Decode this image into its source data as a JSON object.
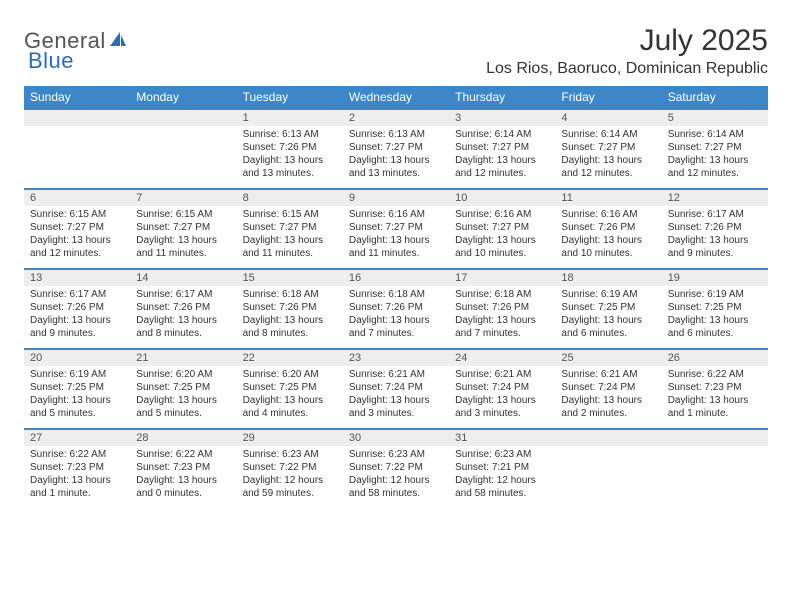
{
  "logo": {
    "part1": "General",
    "part2": "Blue"
  },
  "title": "July 2025",
  "location": "Los Rios, Baoruco, Dominican Republic",
  "colors": {
    "header_bg": "#3d87c9",
    "header_text": "#ffffff",
    "daynum_bg": "#eeeeee",
    "border": "#3d87c9",
    "text": "#333333",
    "logo_gray": "#555555",
    "logo_blue": "#2a6db3"
  },
  "weekdays": [
    "Sunday",
    "Monday",
    "Tuesday",
    "Wednesday",
    "Thursday",
    "Friday",
    "Saturday"
  ],
  "weeks": [
    [
      {
        "blank": true
      },
      {
        "blank": true
      },
      {
        "day": "1",
        "sunrise": "Sunrise: 6:13 AM",
        "sunset": "Sunset: 7:26 PM",
        "daylight": "Daylight: 13 hours and 13 minutes."
      },
      {
        "day": "2",
        "sunrise": "Sunrise: 6:13 AM",
        "sunset": "Sunset: 7:27 PM",
        "daylight": "Daylight: 13 hours and 13 minutes."
      },
      {
        "day": "3",
        "sunrise": "Sunrise: 6:14 AM",
        "sunset": "Sunset: 7:27 PM",
        "daylight": "Daylight: 13 hours and 12 minutes."
      },
      {
        "day": "4",
        "sunrise": "Sunrise: 6:14 AM",
        "sunset": "Sunset: 7:27 PM",
        "daylight": "Daylight: 13 hours and 12 minutes."
      },
      {
        "day": "5",
        "sunrise": "Sunrise: 6:14 AM",
        "sunset": "Sunset: 7:27 PM",
        "daylight": "Daylight: 13 hours and 12 minutes."
      }
    ],
    [
      {
        "day": "6",
        "sunrise": "Sunrise: 6:15 AM",
        "sunset": "Sunset: 7:27 PM",
        "daylight": "Daylight: 13 hours and 12 minutes."
      },
      {
        "day": "7",
        "sunrise": "Sunrise: 6:15 AM",
        "sunset": "Sunset: 7:27 PM",
        "daylight": "Daylight: 13 hours and 11 minutes."
      },
      {
        "day": "8",
        "sunrise": "Sunrise: 6:15 AM",
        "sunset": "Sunset: 7:27 PM",
        "daylight": "Daylight: 13 hours and 11 minutes."
      },
      {
        "day": "9",
        "sunrise": "Sunrise: 6:16 AM",
        "sunset": "Sunset: 7:27 PM",
        "daylight": "Daylight: 13 hours and 11 minutes."
      },
      {
        "day": "10",
        "sunrise": "Sunrise: 6:16 AM",
        "sunset": "Sunset: 7:27 PM",
        "daylight": "Daylight: 13 hours and 10 minutes."
      },
      {
        "day": "11",
        "sunrise": "Sunrise: 6:16 AM",
        "sunset": "Sunset: 7:26 PM",
        "daylight": "Daylight: 13 hours and 10 minutes."
      },
      {
        "day": "12",
        "sunrise": "Sunrise: 6:17 AM",
        "sunset": "Sunset: 7:26 PM",
        "daylight": "Daylight: 13 hours and 9 minutes."
      }
    ],
    [
      {
        "day": "13",
        "sunrise": "Sunrise: 6:17 AM",
        "sunset": "Sunset: 7:26 PM",
        "daylight": "Daylight: 13 hours and 9 minutes."
      },
      {
        "day": "14",
        "sunrise": "Sunrise: 6:17 AM",
        "sunset": "Sunset: 7:26 PM",
        "daylight": "Daylight: 13 hours and 8 minutes."
      },
      {
        "day": "15",
        "sunrise": "Sunrise: 6:18 AM",
        "sunset": "Sunset: 7:26 PM",
        "daylight": "Daylight: 13 hours and 8 minutes."
      },
      {
        "day": "16",
        "sunrise": "Sunrise: 6:18 AM",
        "sunset": "Sunset: 7:26 PM",
        "daylight": "Daylight: 13 hours and 7 minutes."
      },
      {
        "day": "17",
        "sunrise": "Sunrise: 6:18 AM",
        "sunset": "Sunset: 7:26 PM",
        "daylight": "Daylight: 13 hours and 7 minutes."
      },
      {
        "day": "18",
        "sunrise": "Sunrise: 6:19 AM",
        "sunset": "Sunset: 7:25 PM",
        "daylight": "Daylight: 13 hours and 6 minutes."
      },
      {
        "day": "19",
        "sunrise": "Sunrise: 6:19 AM",
        "sunset": "Sunset: 7:25 PM",
        "daylight": "Daylight: 13 hours and 6 minutes."
      }
    ],
    [
      {
        "day": "20",
        "sunrise": "Sunrise: 6:19 AM",
        "sunset": "Sunset: 7:25 PM",
        "daylight": "Daylight: 13 hours and 5 minutes."
      },
      {
        "day": "21",
        "sunrise": "Sunrise: 6:20 AM",
        "sunset": "Sunset: 7:25 PM",
        "daylight": "Daylight: 13 hours and 5 minutes."
      },
      {
        "day": "22",
        "sunrise": "Sunrise: 6:20 AM",
        "sunset": "Sunset: 7:25 PM",
        "daylight": "Daylight: 13 hours and 4 minutes."
      },
      {
        "day": "23",
        "sunrise": "Sunrise: 6:21 AM",
        "sunset": "Sunset: 7:24 PM",
        "daylight": "Daylight: 13 hours and 3 minutes."
      },
      {
        "day": "24",
        "sunrise": "Sunrise: 6:21 AM",
        "sunset": "Sunset: 7:24 PM",
        "daylight": "Daylight: 13 hours and 3 minutes."
      },
      {
        "day": "25",
        "sunrise": "Sunrise: 6:21 AM",
        "sunset": "Sunset: 7:24 PM",
        "daylight": "Daylight: 13 hours and 2 minutes."
      },
      {
        "day": "26",
        "sunrise": "Sunrise: 6:22 AM",
        "sunset": "Sunset: 7:23 PM",
        "daylight": "Daylight: 13 hours and 1 minute."
      }
    ],
    [
      {
        "day": "27",
        "sunrise": "Sunrise: 6:22 AM",
        "sunset": "Sunset: 7:23 PM",
        "daylight": "Daylight: 13 hours and 1 minute."
      },
      {
        "day": "28",
        "sunrise": "Sunrise: 6:22 AM",
        "sunset": "Sunset: 7:23 PM",
        "daylight": "Daylight: 13 hours and 0 minutes."
      },
      {
        "day": "29",
        "sunrise": "Sunrise: 6:23 AM",
        "sunset": "Sunset: 7:22 PM",
        "daylight": "Daylight: 12 hours and 59 minutes."
      },
      {
        "day": "30",
        "sunrise": "Sunrise: 6:23 AM",
        "sunset": "Sunset: 7:22 PM",
        "daylight": "Daylight: 12 hours and 58 minutes."
      },
      {
        "day": "31",
        "sunrise": "Sunrise: 6:23 AM",
        "sunset": "Sunset: 7:21 PM",
        "daylight": "Daylight: 12 hours and 58 minutes."
      },
      {
        "blank": true
      },
      {
        "blank": true
      }
    ]
  ]
}
